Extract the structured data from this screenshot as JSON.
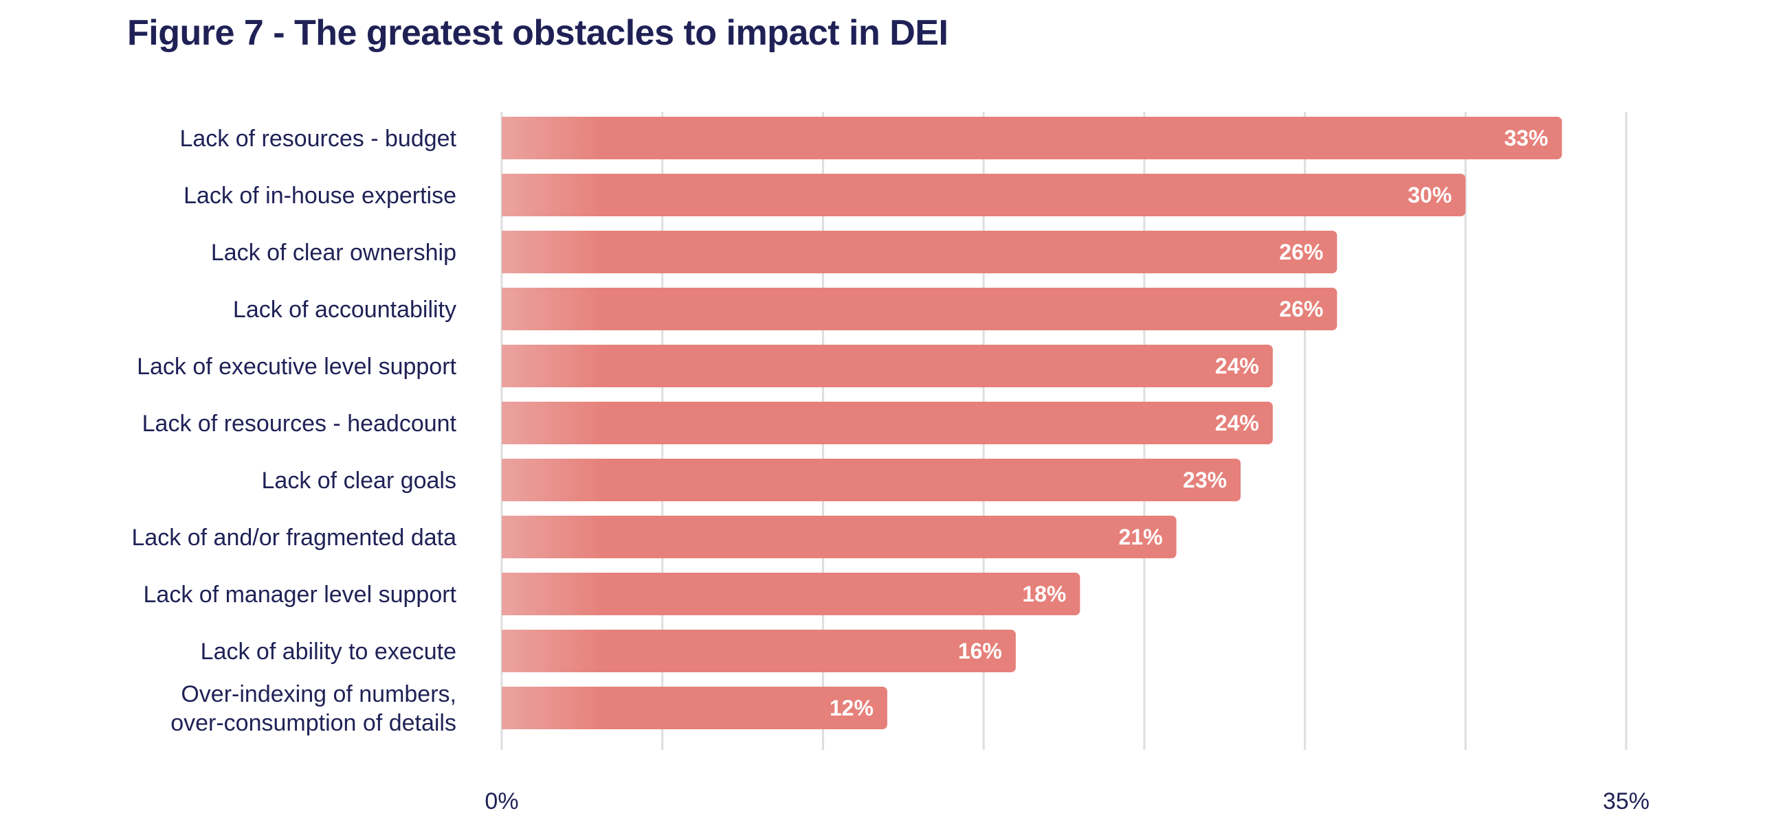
{
  "chart_data": {
    "type": "bar",
    "orientation": "horizontal",
    "title": "Figure 7 - The greatest obstacles to impact in DEI",
    "categories": [
      [
        "Lack of resources - budget"
      ],
      [
        "Lack of in-house expertise"
      ],
      [
        "Lack of clear ownership"
      ],
      [
        "Lack of accountability"
      ],
      [
        "Lack of executive level support"
      ],
      [
        "Lack of resources - headcount"
      ],
      [
        "Lack of clear goals"
      ],
      [
        "Lack of and/or fragmented data"
      ],
      [
        "Lack of manager level support"
      ],
      [
        "Lack of ability to execute"
      ],
      [
        "Over-indexing of numbers,",
        "over-consumption of details"
      ]
    ],
    "values": [
      33,
      30,
      26,
      26,
      24,
      24,
      23,
      21,
      18,
      16,
      12
    ],
    "value_labels": [
      "33%",
      "30%",
      "26%",
      "26%",
      "24%",
      "24%",
      "23%",
      "21%",
      "18%",
      "16%",
      "12%"
    ],
    "xlim": [
      0,
      35
    ],
    "gridlines": [
      0,
      5,
      10,
      15,
      20,
      25,
      30,
      35
    ],
    "tick_labels": [
      {
        "value": 0,
        "label": "0%"
      },
      {
        "value": 35,
        "label": "35%"
      }
    ],
    "grid": true,
    "xlabel": "",
    "ylabel": "",
    "colors": {
      "bar": "#e6807a",
      "bar_gradient_start": "#eba39f",
      "text": "#1f2156",
      "grid": "#dedede",
      "value_text": "#ffffff"
    }
  }
}
